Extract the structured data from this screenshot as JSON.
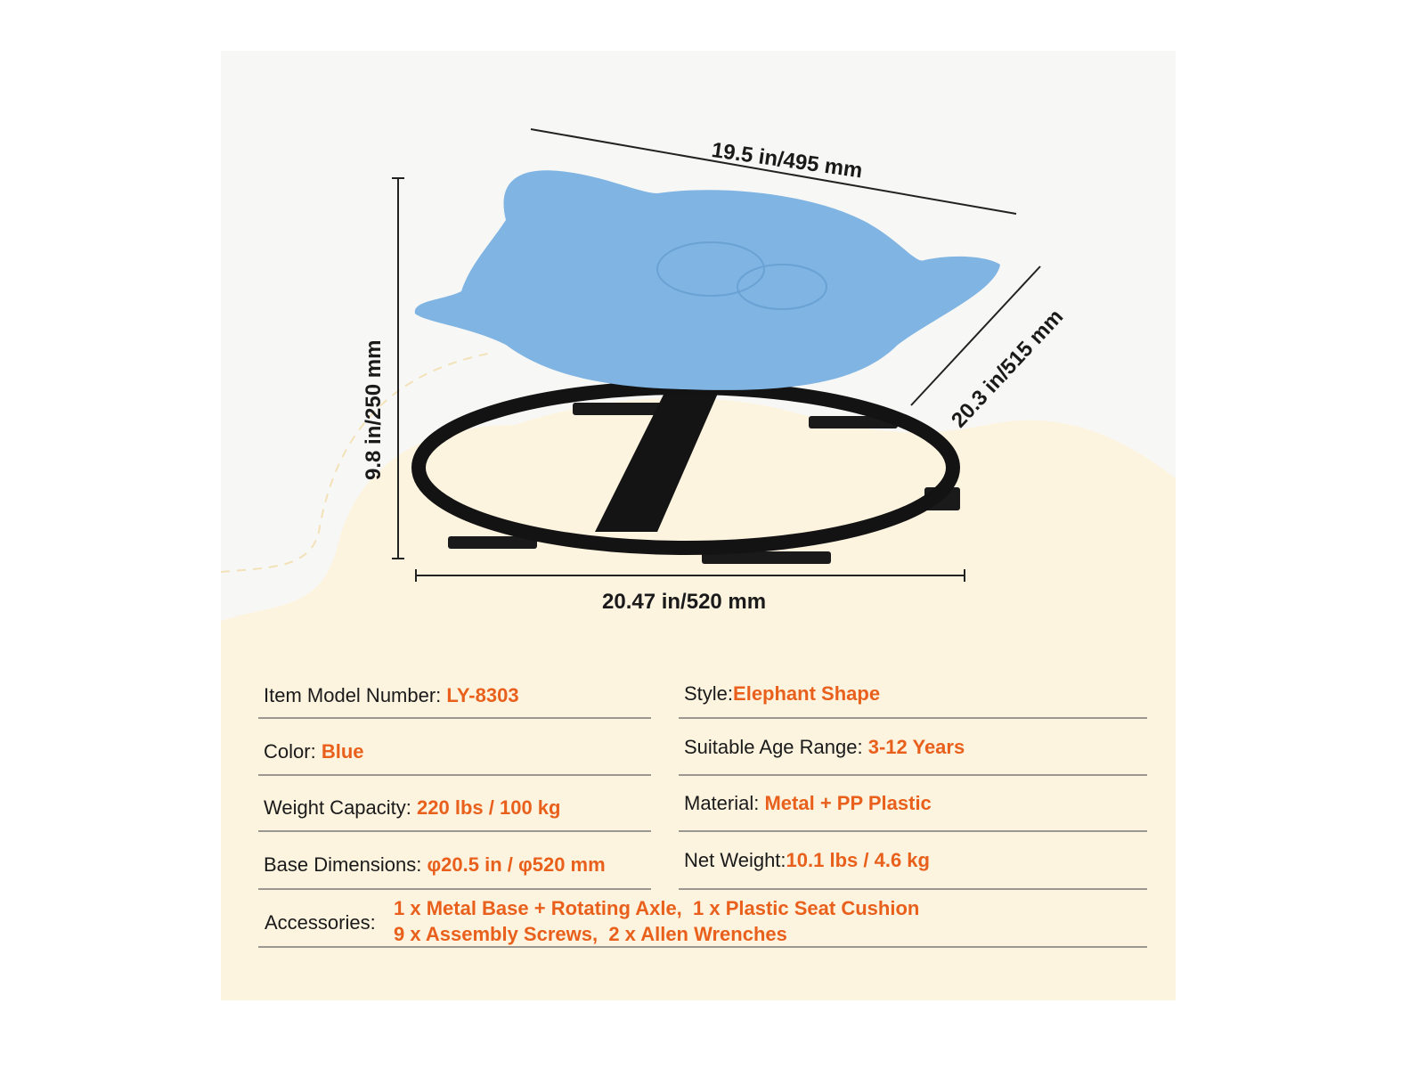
{
  "dimensions": {
    "top_width": "19.5 in/495 mm",
    "depth": "20.3 in/515 mm",
    "height": "9.8 in/250 mm",
    "base_width": "20.47 in/520 mm"
  },
  "product_colors": {
    "seat": "#7fb4e3",
    "base": "#111111",
    "accent": "#e8601c",
    "background": "#fdf4e0"
  },
  "specs": {
    "model": {
      "label": "Item Model Number:",
      "value": "LY-8303"
    },
    "style": {
      "label": "Style:",
      "value": "Elephant Shape"
    },
    "color": {
      "label": "Color:",
      "value": "Blue"
    },
    "age": {
      "label": "Suitable Age Range:",
      "value": "3-12 Years"
    },
    "weight_capacity": {
      "label": "Weight Capacity:",
      "value": "220 lbs / 100 kg"
    },
    "material": {
      "label": "Material:",
      "value": "Metal + PP Plastic"
    },
    "base_dimensions": {
      "label": "Base Dimensions:",
      "value": "φ20.5 in / φ520 mm"
    },
    "net_weight": {
      "label": "Net Weight:",
      "value": "10.1 lbs / 4.6 kg"
    },
    "accessories": {
      "label": "Accessories:",
      "line1": "1 x Metal Base + Rotating Axle,  1 x Plastic Seat Cushion",
      "line2": "9 x Assembly Screws,  2 x Allen Wrenches"
    }
  }
}
